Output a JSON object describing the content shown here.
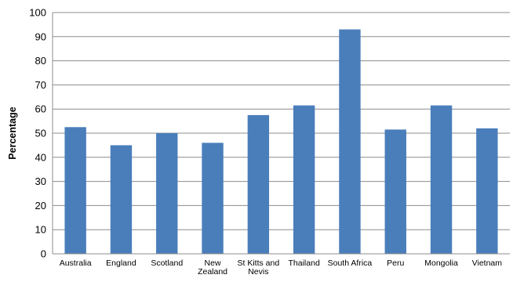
{
  "chart_data": {
    "type": "bar",
    "title": "",
    "xlabel": "",
    "ylabel": "Percentage",
    "ylim": [
      0,
      100
    ],
    "yticks": [
      0,
      10,
      20,
      30,
      40,
      50,
      60,
      70,
      80,
      90,
      100
    ],
    "grid": true,
    "legend": "none",
    "bar_color": "#4a7ebb",
    "categories": [
      "Australia",
      "England",
      "Scotland",
      "New Zealand",
      "St Kitts and Nevis",
      "Thailand",
      "South Africa",
      "Peru",
      "Mongolia",
      "Vietnam"
    ],
    "category_lines": [
      [
        "Australia"
      ],
      [
        "England"
      ],
      [
        "Scotland"
      ],
      [
        "New",
        "Zealand"
      ],
      [
        "St Kitts and",
        "Nevis"
      ],
      [
        "Thailand"
      ],
      [
        "South Africa"
      ],
      [
        "Peru"
      ],
      [
        "Mongolia"
      ],
      [
        "Vietnam"
      ]
    ],
    "values": [
      52.5,
      45,
      50,
      46,
      57.5,
      61.5,
      93,
      51.5,
      61.5,
      52
    ]
  }
}
